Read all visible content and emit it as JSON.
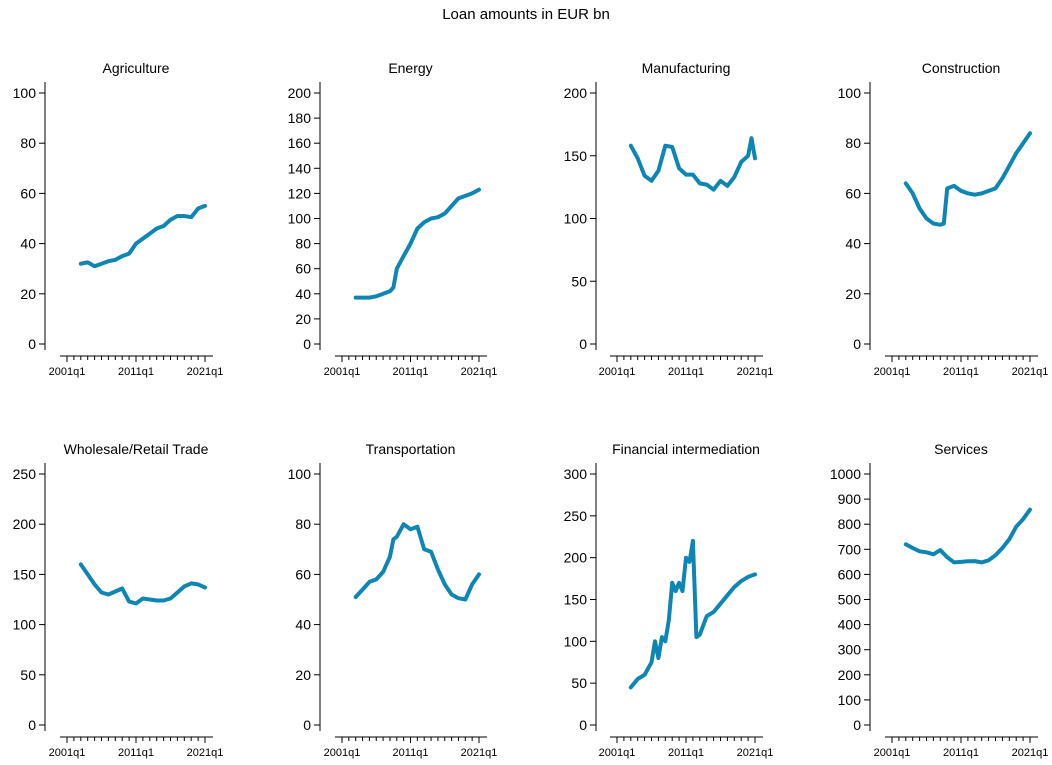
{
  "title": "Loan amounts in EUR bn",
  "colors": {
    "line": "#0e86b4",
    "axis": "#000000"
  },
  "chart_data": [
    {
      "type": "line",
      "title": "Agriculture",
      "xticks": [
        "2001q1",
        "2011q1",
        "2021q1"
      ],
      "xlim": [
        2001,
        2021
      ],
      "yticks": [
        0,
        20,
        40,
        60,
        80,
        100
      ],
      "ylim": [
        0,
        100
      ],
      "x": [
        2003,
        2004,
        2005,
        2006,
        2007,
        2008,
        2009,
        2010,
        2011,
        2012,
        2013,
        2014,
        2015,
        2016,
        2017,
        2018,
        2019,
        2020,
        2021
      ],
      "series": [
        {
          "values": [
            32,
            32.5,
            31,
            32,
            33,
            33.5,
            35,
            36,
            40,
            42,
            44,
            46,
            47,
            49.5,
            51,
            51,
            50.5,
            54,
            55
          ]
        }
      ]
    },
    {
      "type": "line",
      "title": "Energy",
      "xticks": [
        "2001q1",
        "2011q1",
        "2021q1"
      ],
      "xlim": [
        2001,
        2021
      ],
      "yticks": [
        0,
        20,
        40,
        60,
        80,
        100,
        120,
        140,
        160,
        180,
        200
      ],
      "ylim": [
        0,
        200
      ],
      "x": [
        2003,
        2004,
        2005,
        2006,
        2007,
        2008,
        2008.5,
        2009,
        2010,
        2011,
        2012,
        2013,
        2014,
        2015,
        2016,
        2017,
        2018,
        2019,
        2020,
        2021
      ],
      "series": [
        {
          "values": [
            37,
            37,
            37,
            38,
            40,
            42,
            45,
            60,
            70,
            80,
            92,
            97,
            100,
            101,
            104,
            110,
            116,
            118,
            120,
            123
          ]
        }
      ]
    },
    {
      "type": "line",
      "title": "Manufacturing",
      "xticks": [
        "2001q1",
        "2011q1",
        "2021q1"
      ],
      "xlim": [
        2001,
        2021
      ],
      "yticks": [
        0,
        50,
        100,
        150,
        200
      ],
      "ylim": [
        0,
        200
      ],
      "x": [
        2003,
        2004,
        2005,
        2006,
        2007,
        2008,
        2009,
        2010,
        2011,
        2012,
        2013,
        2014,
        2015,
        2016,
        2017,
        2018,
        2019,
        2020,
        2020.5,
        2021
      ],
      "series": [
        {
          "values": [
            158,
            148,
            134,
            130,
            138,
            158,
            157,
            140,
            135,
            135,
            128,
            127,
            123,
            130,
            126,
            133,
            145,
            150,
            164,
            148
          ]
        }
      ]
    },
    {
      "type": "line",
      "title": "Construction",
      "xticks": [
        "2001q1",
        "2011q1",
        "2021q1"
      ],
      "xlim": [
        2001,
        2021
      ],
      "yticks": [
        0,
        20,
        40,
        60,
        80,
        100
      ],
      "ylim": [
        0,
        100
      ],
      "x": [
        2003,
        2004,
        2005,
        2006,
        2007,
        2008,
        2008.5,
        2009,
        2010,
        2011,
        2012,
        2013,
        2014,
        2015,
        2016,
        2017,
        2018,
        2019,
        2020,
        2021
      ],
      "series": [
        {
          "values": [
            64,
            60,
            54,
            50,
            48,
            47.5,
            48,
            62,
            63,
            61,
            60,
            59.5,
            60,
            61,
            62,
            66,
            71,
            76,
            80,
            84
          ]
        }
      ]
    },
    {
      "type": "line",
      "title": "Wholesale/Retail Trade",
      "xticks": [
        "2001q1",
        "2011q1",
        "2021q1"
      ],
      "xlim": [
        2001,
        2021
      ],
      "yticks": [
        0,
        50,
        100,
        150,
        200,
        250
      ],
      "ylim": [
        0,
        250
      ],
      "x": [
        2003,
        2004,
        2005,
        2006,
        2007,
        2008,
        2009,
        2010,
        2011,
        2012,
        2013,
        2014,
        2015,
        2016,
        2017,
        2018,
        2019,
        2020,
        2021
      ],
      "series": [
        {
          "values": [
            160,
            150,
            140,
            132,
            130,
            133,
            136,
            123,
            121,
            126,
            125,
            124,
            124,
            126,
            132,
            138,
            141,
            140,
            137
          ]
        }
      ]
    },
    {
      "type": "line",
      "title": "Transportation",
      "xticks": [
        "2001q1",
        "2011q1",
        "2021q1"
      ],
      "xlim": [
        2001,
        2021
      ],
      "yticks": [
        0,
        20,
        40,
        60,
        80,
        100
      ],
      "ylim": [
        0,
        100
      ],
      "x": [
        2003,
        2004,
        2005,
        2006,
        2007,
        2008,
        2008.5,
        2009,
        2010,
        2011,
        2012,
        2013,
        2014,
        2015,
        2016,
        2017,
        2018,
        2019,
        2020,
        2021
      ],
      "series": [
        {
          "values": [
            51,
            54,
            57,
            58,
            61,
            67,
            74,
            75,
            80,
            78,
            79,
            70,
            69,
            62,
            56,
            52,
            50.5,
            50,
            56,
            60
          ]
        }
      ]
    },
    {
      "type": "line",
      "title": "Financial intermediation",
      "xticks": [
        "2001q1",
        "2011q1",
        "2021q1"
      ],
      "xlim": [
        2001,
        2021
      ],
      "yticks": [
        0,
        50,
        100,
        150,
        200,
        250,
        300
      ],
      "ylim": [
        0,
        300
      ],
      "x": [
        2003,
        2004,
        2005,
        2006,
        2006.5,
        2007,
        2007.5,
        2008,
        2008.5,
        2009,
        2009.5,
        2010,
        2010.5,
        2011,
        2011.5,
        2012,
        2012.5,
        2013,
        2014,
        2015,
        2016,
        2017,
        2018,
        2019,
        2020,
        2021
      ],
      "series": [
        {
          "values": [
            45,
            55,
            60,
            75,
            100,
            80,
            105,
            100,
            125,
            170,
            160,
            170,
            160,
            200,
            195,
            220,
            105,
            108,
            130,
            135,
            145,
            155,
            165,
            172,
            177,
            180
          ]
        }
      ]
    },
    {
      "type": "line",
      "title": "Services",
      "xticks": [
        "2001q1",
        "2011q1",
        "2021q1"
      ],
      "xlim": [
        2001,
        2021
      ],
      "yticks": [
        0,
        100,
        200,
        300,
        400,
        500,
        600,
        700,
        800,
        900,
        1000
      ],
      "ylim": [
        0,
        1000
      ],
      "x": [
        2003,
        2004,
        2005,
        2006,
        2007,
        2008,
        2009,
        2010,
        2011,
        2012,
        2013,
        2014,
        2015,
        2016,
        2017,
        2018,
        2019,
        2020,
        2021
      ],
      "series": [
        {
          "values": [
            720,
            705,
            692,
            688,
            680,
            697,
            668,
            648,
            650,
            652,
            653,
            648,
            656,
            676,
            705,
            740,
            790,
            820,
            858
          ]
        }
      ]
    }
  ]
}
